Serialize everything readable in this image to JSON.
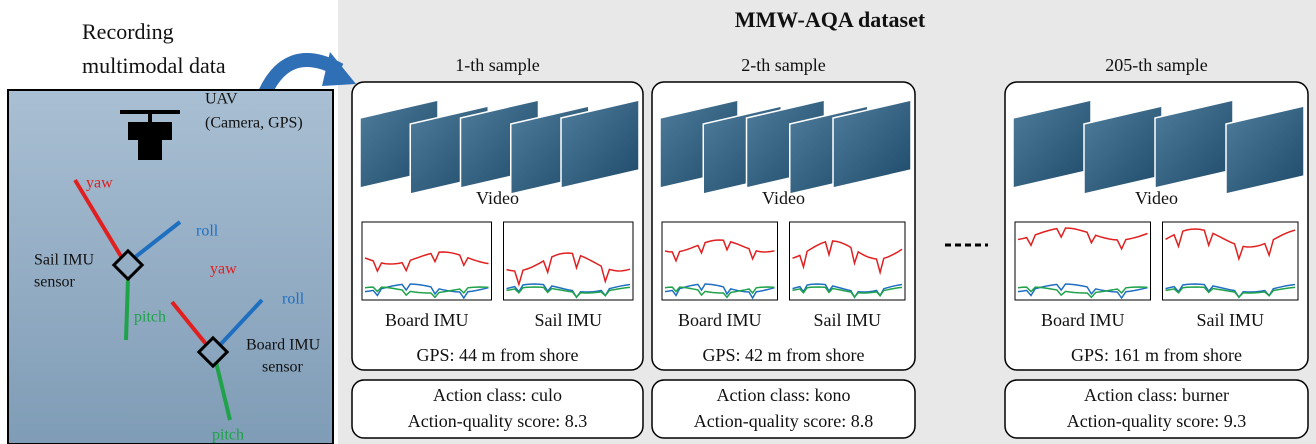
{
  "recording": {
    "lines": [
      "Recording",
      "multimodal data"
    ]
  },
  "photo": {
    "uav": "UAV",
    "uav_detail": "(Camera, GPS)",
    "sail_yaw": "yaw",
    "sail_roll": "roll",
    "sail_pitch": "pitch",
    "sail_sensor": [
      "Sail IMU",
      "sensor"
    ],
    "board_yaw": "yaw",
    "board_roll": "roll",
    "board_pitch": "pitch",
    "board_sensor": [
      "Board IMU",
      "sensor"
    ]
  },
  "dataset": {
    "title": "MMW-AQA dataset",
    "samples": [
      {
        "title": "1-th sample",
        "video": "Video",
        "imu": [
          "Board IMU",
          "Sail IMU"
        ],
        "gps": "GPS: 44 m from shore",
        "action_class": "Action class: culo",
        "score": "Action-quality score: 8.3"
      },
      {
        "title": "2-th sample",
        "video": "Video",
        "imu": [
          "Board IMU",
          "Sail IMU"
        ],
        "gps": "GPS: 42 m from shore",
        "action_class": "Action class: kono",
        "score": "Action-quality score: 8.8"
      },
      {
        "title": "205-th sample",
        "video": "Video",
        "imu": [
          "Board IMU",
          "Sail IMU"
        ],
        "gps": "GPS: 161 m from shore",
        "action_class": "Action class: burner",
        "score": "Action-quality score: 9.3"
      }
    ]
  }
}
